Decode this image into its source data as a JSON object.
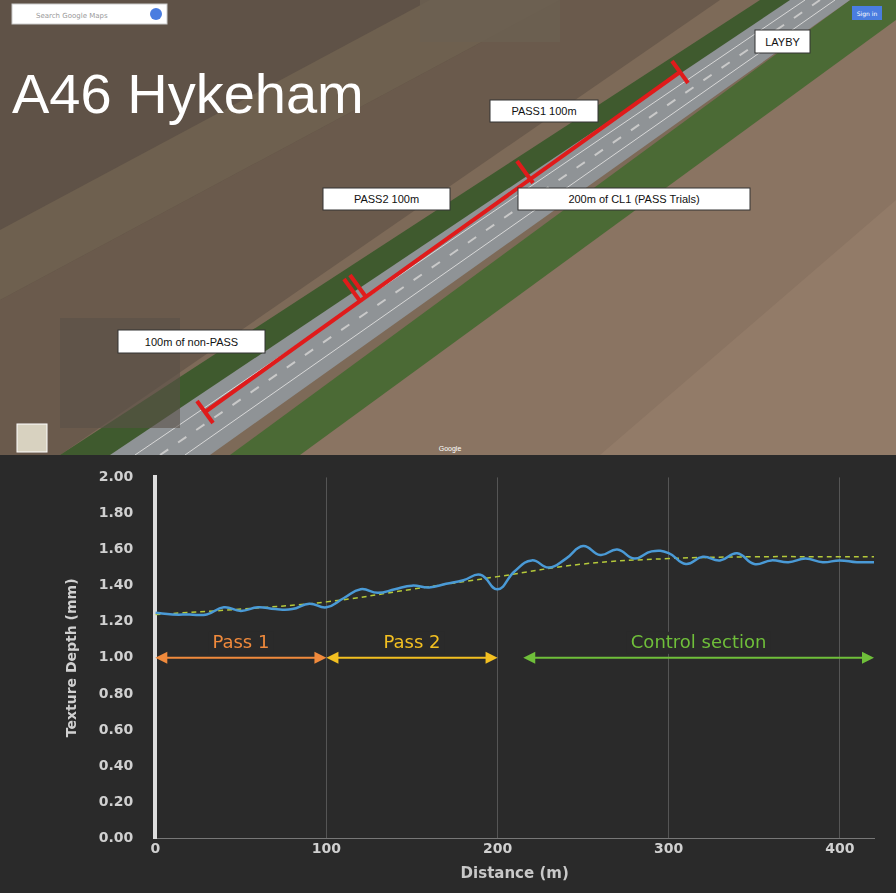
{
  "map": {
    "title": "A46 Hykeham",
    "labels": [
      "PASS1 100m",
      "PASS2 100m",
      "200m of CL1 (PASS Trials)",
      "100m of non-PASS",
      "LAYBY"
    ],
    "search_placeholder": "Search Google Maps",
    "attribution": "Google",
    "button": "Sign in"
  },
  "chart_data": {
    "type": "line",
    "x_label": "Distance (m)",
    "y_label": "Texture Depth (mm)",
    "xlim": [
      0,
      420
    ],
    "xticks": [
      0,
      100,
      200,
      300,
      400
    ],
    "ylim": [
      0,
      2
    ],
    "yticks": [
      {
        "value": 0,
        "label": "0.00"
      },
      {
        "value": 0.2,
        "label": "0.20"
      },
      {
        "value": 0.4,
        "label": "0.40"
      },
      {
        "value": 0.6,
        "label": "0.60"
      },
      {
        "value": 0.8,
        "label": "0.80"
      },
      {
        "value": 1.0,
        "label": "1.00"
      },
      {
        "value": 1.2,
        "label": "1.20"
      },
      {
        "value": 1.4,
        "label": "1.40"
      },
      {
        "value": 1.6,
        "label": "1.60"
      },
      {
        "value": 1.8,
        "label": "1.80"
      },
      {
        "value": 2.0,
        "label": "2.00"
      }
    ],
    "grid": "x",
    "series": [
      {
        "color": "#4a9ad6",
        "line_style": "solid",
        "x": [
          0,
          10,
          20,
          30,
          40,
          50,
          60,
          70,
          80,
          90,
          100,
          110,
          120,
          130,
          140,
          150,
          160,
          170,
          180,
          190,
          200,
          210,
          220,
          230,
          240,
          250,
          260,
          270,
          280,
          290,
          300,
          310,
          320,
          330,
          340,
          350,
          360,
          370,
          380,
          390,
          400,
          410,
          420
        ],
        "values": [
          1.25,
          1.24,
          1.24,
          1.24,
          1.28,
          1.26,
          1.28,
          1.27,
          1.27,
          1.3,
          1.28,
          1.33,
          1.38,
          1.36,
          1.38,
          1.4,
          1.39,
          1.41,
          1.43,
          1.46,
          1.38,
          1.48,
          1.54,
          1.5,
          1.55,
          1.62,
          1.57,
          1.6,
          1.55,
          1.59,
          1.58,
          1.52,
          1.56,
          1.54,
          1.58,
          1.52,
          1.54,
          1.53,
          1.55,
          1.53,
          1.54,
          1.53,
          1.53
        ]
      },
      {
        "color": "#b5c93a",
        "line_style": "dashed",
        "x": [
          0,
          50,
          100,
          150,
          200,
          250,
          300,
          350,
          400,
          420
        ],
        "values": [
          1.24,
          1.27,
          1.31,
          1.38,
          1.45,
          1.52,
          1.55,
          1.56,
          1.56,
          1.56
        ]
      }
    ],
    "annotations": [
      {
        "text": "Pass 1",
        "color": "#f08a3c",
        "x": [
          0,
          100
        ],
        "y": 1.0
      },
      {
        "text": "Pass 2",
        "color": "#f3c021",
        "x": [
          100,
          200
        ],
        "y": 1.0
      },
      {
        "text": "Control section",
        "color": "#6fbf3a",
        "x": [
          215,
          420
        ],
        "y": 1.0
      }
    ]
  }
}
